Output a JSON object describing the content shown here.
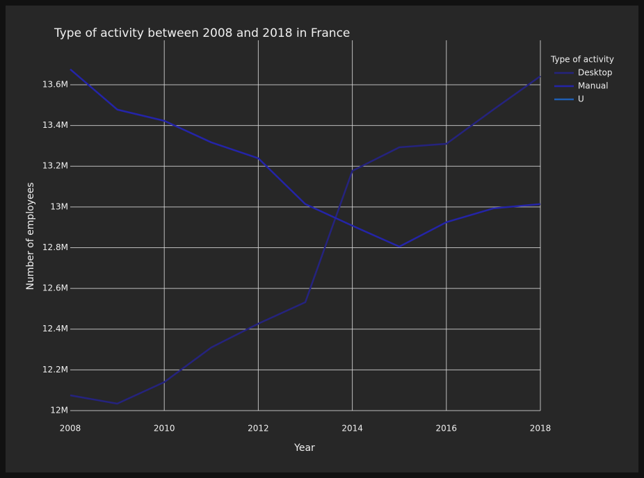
{
  "chart_data": {
    "type": "line",
    "title": "Type of activity between 2008 and 2018 in France",
    "x_label": "Year",
    "y_label": "Number of employees",
    "legend_title": "Type of activity",
    "x": [
      2008,
      2009,
      2010,
      2011,
      2012,
      2013,
      2014,
      2015,
      2016,
      2017,
      2018
    ],
    "series": [
      {
        "name": "Desktop",
        "color": "#25237e",
        "values": [
          12075000,
          12034000,
          12140000,
          12310000,
          12427000,
          12532000,
          13177000,
          13293000,
          13310000,
          13478000,
          13642000
        ]
      },
      {
        "name": "Manual",
        "color": "#2424a8",
        "values": [
          13676000,
          13478000,
          13423000,
          13317000,
          13239000,
          13014000,
          12908000,
          12805000,
          12925000,
          12993000,
          13014000
        ]
      },
      {
        "name": "U",
        "color": "#1f5fb4",
        "values": [
          null,
          null,
          null,
          null,
          null,
          null,
          null,
          null,
          null,
          null,
          null
        ]
      }
    ],
    "xlim": [
      2008,
      2018
    ],
    "xticks": [
      2008,
      2010,
      2012,
      2014,
      2016,
      2018
    ],
    "ylim": [
      12000000,
      13750000
    ],
    "yticks": [
      {
        "value": 12000000,
        "label": "12M"
      },
      {
        "value": 12200000,
        "label": "12.2M"
      },
      {
        "value": 12400000,
        "label": "12.4M"
      },
      {
        "value": 12600000,
        "label": "12.6M"
      },
      {
        "value": 12800000,
        "label": "12.8M"
      },
      {
        "value": 13000000,
        "label": "13M"
      },
      {
        "value": 13200000,
        "label": "13.2M"
      },
      {
        "value": 13400000,
        "label": "13.4M"
      },
      {
        "value": 13600000,
        "label": "13.6M"
      }
    ],
    "grid": true,
    "legend": "right"
  }
}
